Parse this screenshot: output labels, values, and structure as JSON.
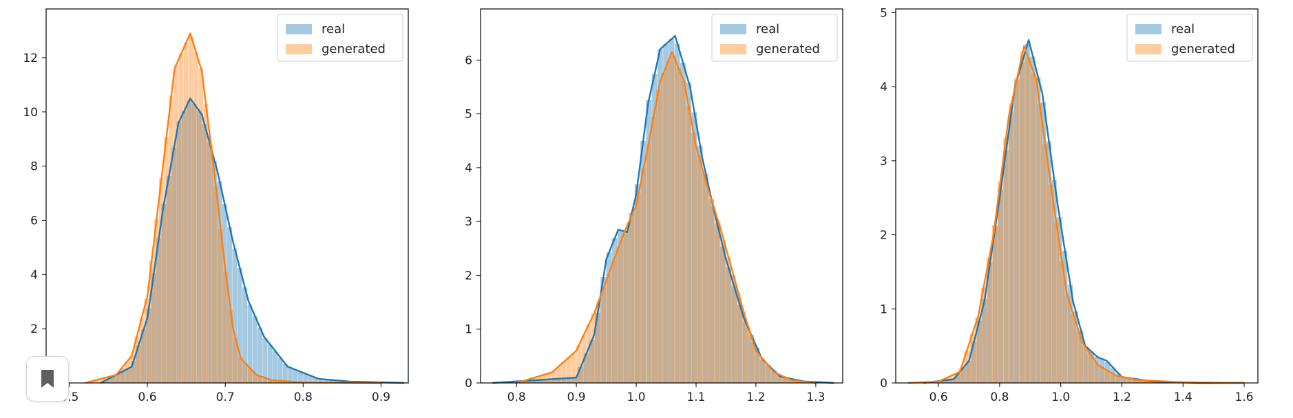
{
  "colors": {
    "real": "#1f77b4",
    "generated": "#ff7f0e"
  },
  "chart_data": [
    {
      "type": "histogram",
      "xlim": [
        0.47,
        0.935
      ],
      "ylim": [
        0,
        13.8
      ],
      "xticks": [
        "0.5",
        "0.6",
        "0.7",
        "0.8",
        "0.9"
      ],
      "yticks": [
        "0",
        "2",
        "4",
        "6",
        "8",
        "10",
        "12"
      ],
      "legend_position": "upper-right",
      "series": [
        {
          "name": "real",
          "x": [
            0.54,
            0.58,
            0.6,
            0.62,
            0.64,
            0.655,
            0.67,
            0.69,
            0.71,
            0.73,
            0.75,
            0.78,
            0.82,
            0.86,
            0.93
          ],
          "y": [
            0.0,
            0.6,
            2.4,
            6.4,
            9.6,
            10.5,
            9.9,
            7.8,
            5.2,
            3.0,
            1.7,
            0.6,
            0.15,
            0.05,
            0.0
          ]
        },
        {
          "name": "generated",
          "x": [
            0.52,
            0.56,
            0.58,
            0.6,
            0.62,
            0.635,
            0.655,
            0.67,
            0.685,
            0.7,
            0.71,
            0.72,
            0.74,
            0.76,
            0.8,
            0.9
          ],
          "y": [
            0.0,
            0.3,
            1.0,
            3.2,
            8.0,
            11.6,
            12.9,
            11.5,
            8.0,
            4.2,
            2.0,
            0.9,
            0.3,
            0.1,
            0.02,
            0.0
          ]
        }
      ]
    },
    {
      "type": "histogram",
      "xlim": [
        0.74,
        1.345
      ],
      "ylim": [
        0,
        6.95
      ],
      "xticks": [
        "0.8",
        "0.9",
        "1.0",
        "1.1",
        "1.2",
        "1.3"
      ],
      "yticks": [
        "0",
        "1",
        "2",
        "3",
        "4",
        "5",
        "6"
      ],
      "legend_position": "upper-right",
      "series": [
        {
          "name": "real",
          "x": [
            0.76,
            0.9,
            0.93,
            0.95,
            0.97,
            0.985,
            1.0,
            1.02,
            1.04,
            1.065,
            1.09,
            1.11,
            1.13,
            1.15,
            1.18,
            1.21,
            1.24,
            1.28,
            1.33
          ],
          "y": [
            0.0,
            0.1,
            0.9,
            2.3,
            2.85,
            2.8,
            3.5,
            5.2,
            6.2,
            6.45,
            5.5,
            4.2,
            3.2,
            2.3,
            1.2,
            0.45,
            0.12,
            0.03,
            0.0
          ]
        },
        {
          "name": "generated",
          "x": [
            0.8,
            0.86,
            0.9,
            0.93,
            0.96,
            0.98,
            1.0,
            1.02,
            1.04,
            1.06,
            1.08,
            1.1,
            1.12,
            1.14,
            1.16,
            1.18,
            1.2,
            1.23,
            1.26,
            1.3
          ],
          "y": [
            0.0,
            0.2,
            0.6,
            1.3,
            2.2,
            2.8,
            3.3,
            4.4,
            5.6,
            6.15,
            5.6,
            4.4,
            3.6,
            2.9,
            2.1,
            1.3,
            0.6,
            0.2,
            0.05,
            0.0
          ]
        }
      ]
    },
    {
      "type": "histogram",
      "xlim": [
        0.46,
        1.645
      ],
      "ylim": [
        0,
        5.05
      ],
      "xticks": [
        "0.6",
        "0.8",
        "1.0",
        "1.2",
        "1.4",
        "1.6"
      ],
      "yticks": [
        "0",
        "1",
        "2",
        "3",
        "4",
        "5"
      ],
      "legend_position": "upper-right",
      "series": [
        {
          "name": "real",
          "x": [
            0.55,
            0.65,
            0.7,
            0.75,
            0.8,
            0.85,
            0.895,
            0.94,
            0.99,
            1.04,
            1.08,
            1.12,
            1.15,
            1.2,
            1.3,
            1.45,
            1.6
          ],
          "y": [
            0.0,
            0.05,
            0.3,
            1.1,
            2.5,
            4.0,
            4.63,
            3.9,
            2.4,
            1.1,
            0.5,
            0.35,
            0.3,
            0.08,
            0.02,
            0.0,
            0.0
          ]
        },
        {
          "name": "generated",
          "x": [
            0.5,
            0.6,
            0.67,
            0.73,
            0.78,
            0.83,
            0.88,
            0.92,
            0.97,
            1.02,
            1.07,
            1.12,
            1.18,
            1.25,
            1.4,
            1.6
          ],
          "y": [
            0.0,
            0.02,
            0.15,
            0.9,
            2.0,
            3.6,
            4.55,
            4.1,
            2.6,
            1.2,
            0.55,
            0.25,
            0.1,
            0.04,
            0.01,
            0.0
          ]
        }
      ]
    }
  ]
}
